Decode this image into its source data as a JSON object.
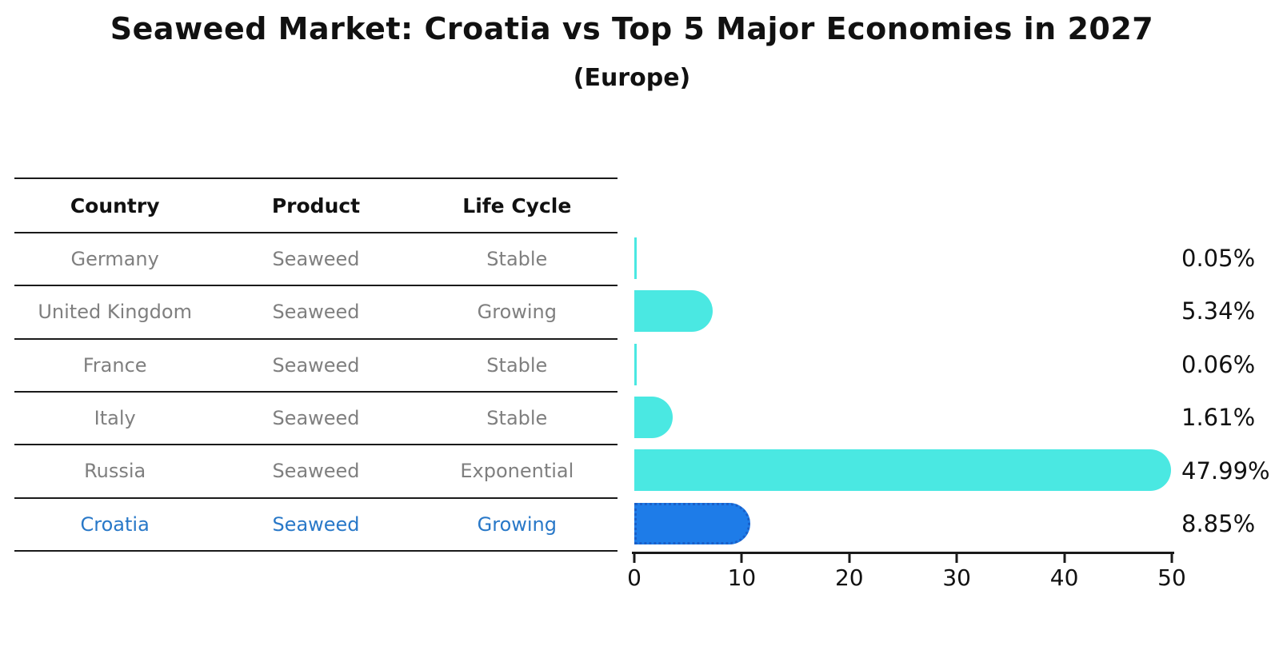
{
  "title": "Seaweed Market: Croatia vs Top 5 Major Economies in 2027",
  "subtitle": "(Europe)",
  "table": {
    "headers": [
      "Country",
      "Product",
      "Life Cycle"
    ],
    "rows": [
      {
        "country": "Germany",
        "product": "Seaweed",
        "life_cycle": "Stable",
        "highlighted": false
      },
      {
        "country": "United Kingdom",
        "product": "Seaweed",
        "life_cycle": "Growing",
        "highlighted": false
      },
      {
        "country": "France",
        "product": "Seaweed",
        "life_cycle": "Stable",
        "highlighted": false
      },
      {
        "country": "Italy",
        "product": "Seaweed",
        "life_cycle": "Stable",
        "highlighted": false
      },
      {
        "country": "Russia",
        "product": "Seaweed",
        "life_cycle": "Exponential",
        "highlighted": false
      },
      {
        "country": "Croatia",
        "product": "Seaweed",
        "life_cycle": "Growing",
        "highlighted": true
      }
    ]
  },
  "chart_data": {
    "type": "bar",
    "orientation": "horizontal",
    "title": "Seaweed Market: Croatia vs Top 5 Major Economies in 2027 (Europe)",
    "categories": [
      "Germany",
      "United Kingdom",
      "France",
      "Italy",
      "Russia",
      "Croatia"
    ],
    "values": [
      0.05,
      5.34,
      0.06,
      1.61,
      47.99,
      8.85
    ],
    "value_labels": [
      "0.05%",
      "5.34%",
      "0.06%",
      "1.61%",
      "47.99%",
      "8.85%"
    ],
    "xlim": [
      0,
      50
    ],
    "x_ticks": [
      "0",
      "10",
      "20",
      "30",
      "40",
      "50"
    ],
    "grid": false,
    "legend_position": "none",
    "highlight_category": "Croatia",
    "bar_color": "#4ae8e2",
    "highlight_bar_color": "#1e7ce8",
    "highlight_text_color": "#2878c8"
  }
}
